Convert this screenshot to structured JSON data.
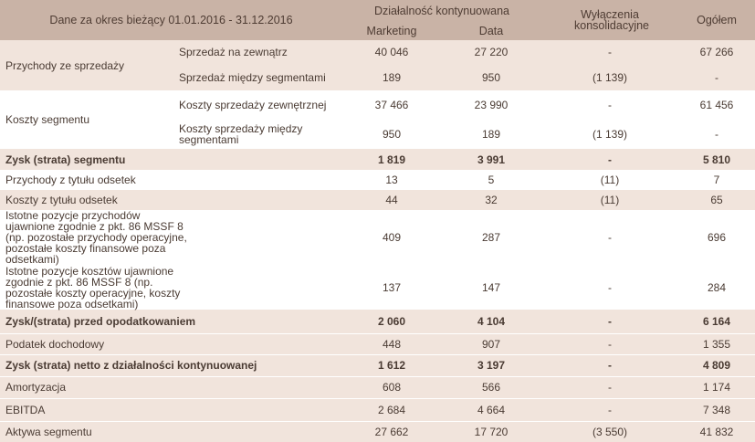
{
  "header": {
    "period_label": "Dane za okres bieżący 01.01.2016 - 31.12.2016",
    "continued_ops": "Działalność kontynuowana",
    "col_marketing": "Marketing",
    "col_data": "Data",
    "col_eliminations": "Wyłączenia konsolidacyjne",
    "col_total": "Ogółem"
  },
  "revenue_group": {
    "label": "Przychody ze sprzedaży",
    "rows": [
      {
        "sub": "Sprzedaż na zewnątrz",
        "marketing": "40 046",
        "data": "27 220",
        "elim": "-",
        "total": "67 266"
      },
      {
        "sub": "Sprzedaż między segmentami",
        "marketing": "189",
        "data": "950",
        "elim": "(1 139)",
        "total": "-"
      }
    ]
  },
  "cost_group": {
    "label": "Koszty segmentu",
    "rows": [
      {
        "sub": "Koszty sprzedaży zewnętrznej",
        "marketing": "37 466",
        "data": "23 990",
        "elim": "-",
        "total": "61 456"
      },
      {
        "sub": "Koszty sprzedaży między segmentami",
        "marketing": "950",
        "data": "189",
        "elim": "(1 139)",
        "total": "-"
      }
    ]
  },
  "rows": [
    {
      "label": "Zysk (strata) segmentu",
      "marketing": "1 819",
      "data": "3 991",
      "elim": "-",
      "total": "5 810"
    },
    {
      "label": "Przychody z tytułu odsetek",
      "marketing": "13",
      "data": "5",
      "elim": "(11)",
      "total": "7"
    },
    {
      "label": "Koszty z tytułu odsetek",
      "marketing": "44",
      "data": "32",
      "elim": "(11)",
      "total": "65"
    },
    {
      "label": "Istotne pozycje przychodów ujawnione zgodnie z pkt. 86 MSSF 8 (np. pozostałe przychody operacyjne, pozostałe koszty finansowe poza odsetkami)",
      "marketing": "409",
      "data": "287",
      "elim": "-",
      "total": "696"
    },
    {
      "label": "Istotne pozycje kosztów ujawnione zgodnie z pkt. 86 MSSF 8 (np. pozostałe koszty operacyjne, koszty finansowe poza odsetkami)",
      "marketing": "137",
      "data": "147",
      "elim": "-",
      "total": "284"
    },
    {
      "label": "Zysk/(strata) przed opodatkowaniem",
      "marketing": "2 060",
      "data": "4 104",
      "elim": "-",
      "total": "6 164"
    },
    {
      "label": "Podatek dochodowy",
      "marketing": "448",
      "data": "907",
      "elim": "-",
      "total": "1 355"
    },
    {
      "label": "Zysk (strata) netto z działalności kontynuowanej",
      "marketing": "1 612",
      "data": "3 197",
      "elim": "-",
      "total": "4 809"
    },
    {
      "label": "Amortyzacja",
      "marketing": "608",
      "data": "566",
      "elim": "-",
      "total": "1 174"
    },
    {
      "label": "EBITDA",
      "marketing": "2 684",
      "data": "4 664",
      "elim": "-",
      "total": "7 348"
    },
    {
      "label": "Aktywa segmentu",
      "marketing": "27 662",
      "data": "17 720",
      "elim": "(3 550)",
      "total": "41 832"
    }
  ],
  "colors": {
    "header_bg": "#c9b3a6",
    "shade_bg": "#f1e4dc",
    "text": "#4a3b33"
  }
}
